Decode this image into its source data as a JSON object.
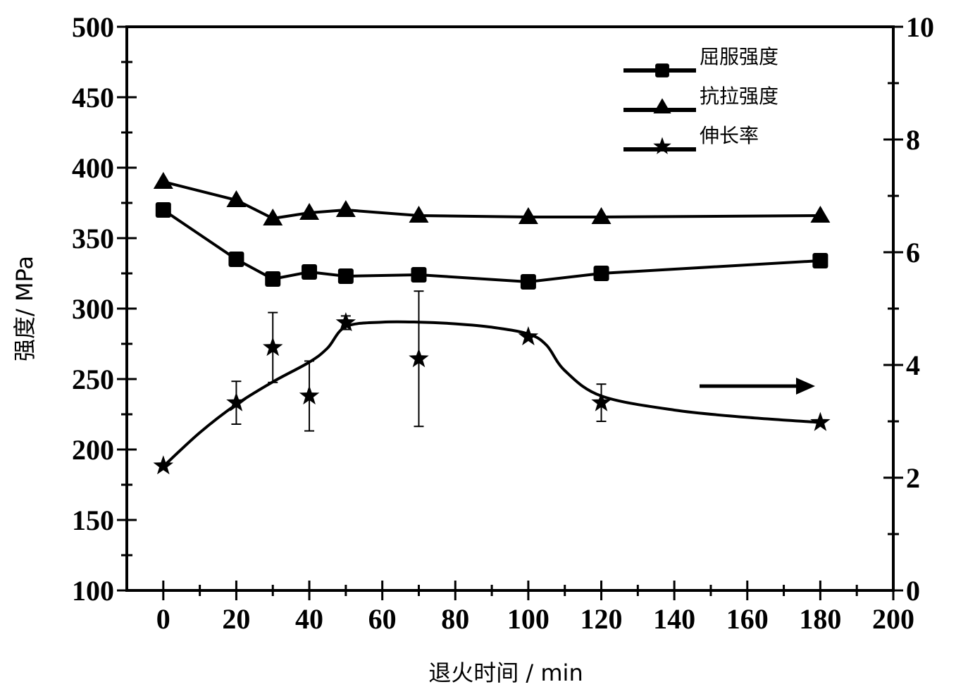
{
  "chart_data": {
    "type": "line",
    "title": "",
    "xlabel": "退火时间  / min",
    "ylabel": "强度/ MPa",
    "y2label": "",
    "xlim": [
      -10,
      200
    ],
    "ylim": [
      100,
      500
    ],
    "y2lim": [
      0,
      10
    ],
    "xticks": [
      0,
      20,
      40,
      60,
      80,
      100,
      120,
      140,
      160,
      180,
      200
    ],
    "yticks": [
      100,
      150,
      200,
      250,
      300,
      350,
      400,
      450,
      500
    ],
    "y2ticks": [
      0,
      2,
      4,
      6,
      8,
      10
    ],
    "grid": false,
    "legend_position": "top-right",
    "x": [
      0,
      20,
      30,
      40,
      50,
      70,
      100,
      120,
      180
    ],
    "series": [
      {
        "name": "屈服强度",
        "axis": "left",
        "marker": "square",
        "values": [
          370,
          335,
          321,
          326,
          323,
          324,
          319,
          325,
          334
        ]
      },
      {
        "name": "抗拉强度",
        "axis": "left",
        "marker": "triangle",
        "values": [
          390,
          377,
          364,
          368,
          370,
          366,
          365,
          365,
          366
        ]
      },
      {
        "name": "伸长率",
        "axis": "right",
        "marker": "star",
        "values": [
          2.21,
          3.33,
          4.31,
          3.45,
          4.75,
          4.11,
          4.5,
          3.33,
          2.98
        ],
        "error": [
          0,
          0.38,
          0.62,
          0.62,
          0.12,
          1.2,
          0,
          0.33,
          0
        ],
        "fit_curve": {
          "x": [
            0,
            10,
            20,
            30,
            40,
            45,
            50,
            60,
            70,
            80,
            90,
            100,
            105,
            110,
            120,
            140,
            160,
            180
          ],
          "y": [
            2.2,
            2.8,
            3.3,
            3.7,
            4.05,
            4.3,
            4.68,
            4.76,
            4.76,
            4.73,
            4.67,
            4.55,
            4.35,
            3.9,
            3.45,
            3.2,
            3.07,
            2.98
          ]
        }
      }
    ],
    "annotations": [
      {
        "type": "arrow",
        "direction": "right",
        "meaning": "伸长率 uses right axis"
      }
    ]
  }
}
